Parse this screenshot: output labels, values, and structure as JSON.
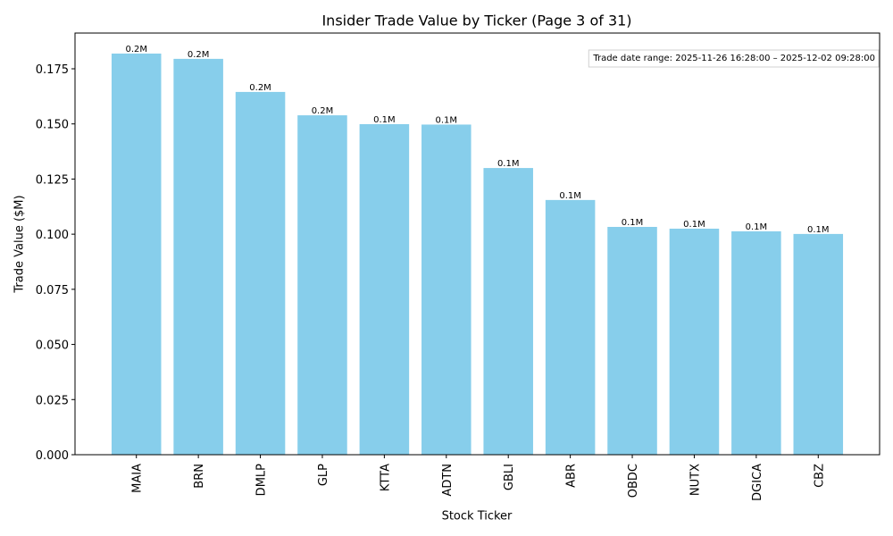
{
  "chart_data": {
    "type": "bar",
    "title": "Insider Trade Value by Ticker (Page 3 of 31)",
    "xlabel": "Stock Ticker",
    "ylabel": "Trade Value ($M)",
    "annotation": "Trade date range: 2025-11-26 16:28:00 – 2025-12-02 09:28:00",
    "categories": [
      "MAIA",
      "BRN",
      "DMLP",
      "GLP",
      "KTTA",
      "ADTN",
      "GBLI",
      "ABR",
      "OBDC",
      "NUTX",
      "DGICA",
      "CBZ"
    ],
    "values": [
      0.1819,
      0.1795,
      0.1645,
      0.1539,
      0.1499,
      0.1497,
      0.13,
      0.1155,
      0.1033,
      0.1025,
      0.1013,
      0.1001
    ],
    "value_labels": [
      "0.2M",
      "0.2M",
      "0.2M",
      "0.2M",
      "0.1M",
      "0.1M",
      "0.1M",
      "0.1M",
      "0.1M",
      "0.1M",
      "0.1M",
      "0.1M"
    ],
    "color": "#87ceeb",
    "ylim": [
      0,
      0.1912
    ],
    "yticks": [
      {
        "value": 0,
        "label": "0.000"
      },
      {
        "value": 0.025,
        "label": "0.025"
      },
      {
        "value": 0.05,
        "label": "0.050"
      },
      {
        "value": 0.075,
        "label": "0.075"
      },
      {
        "value": 0.1,
        "label": "0.100"
      },
      {
        "value": 0.125,
        "label": "0.125"
      },
      {
        "value": 0.15,
        "label": "0.150"
      },
      {
        "value": 0.175,
        "label": "0.175"
      }
    ],
    "grid": false
  }
}
